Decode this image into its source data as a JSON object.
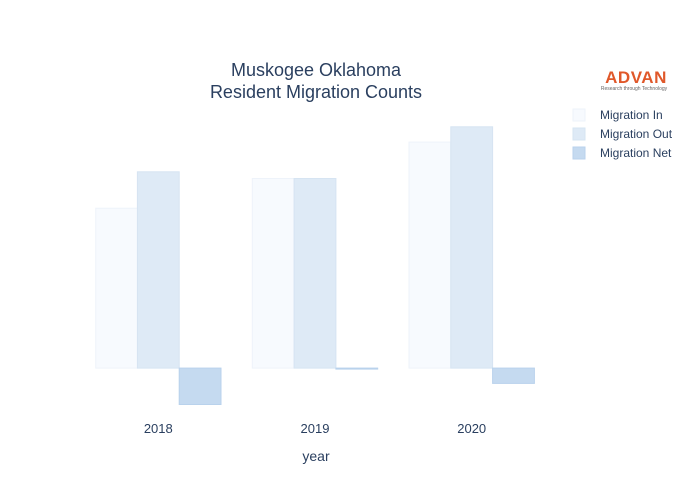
{
  "chart_data": {
    "type": "bar",
    "title_lines": [
      "Muskogee Oklahoma",
      "Resident Migration Counts"
    ],
    "xlabel": "year",
    "ylabel": "",
    "categories": [
      "2018",
      "2019",
      "2020"
    ],
    "series": [
      {
        "name": "Migration In",
        "values": [
          1670,
          1980,
          2360
        ],
        "color": "#f7fafe",
        "stroke": "#eef3fa"
      },
      {
        "name": "Migration Out",
        "values": [
          2050,
          1980,
          2520
        ],
        "color": "#deeaf6",
        "stroke": "#d6e4f2"
      },
      {
        "name": "Migration Net",
        "values": [
          -380,
          0,
          -160
        ],
        "color": "#c5daf0",
        "stroke": "#b9d2ec"
      }
    ],
    "ylim": [
      -500,
      2800
    ],
    "grid": false,
    "legend_position": "top-right"
  },
  "logo": {
    "name": "ADVAN",
    "tagline": "Research through Technology"
  }
}
